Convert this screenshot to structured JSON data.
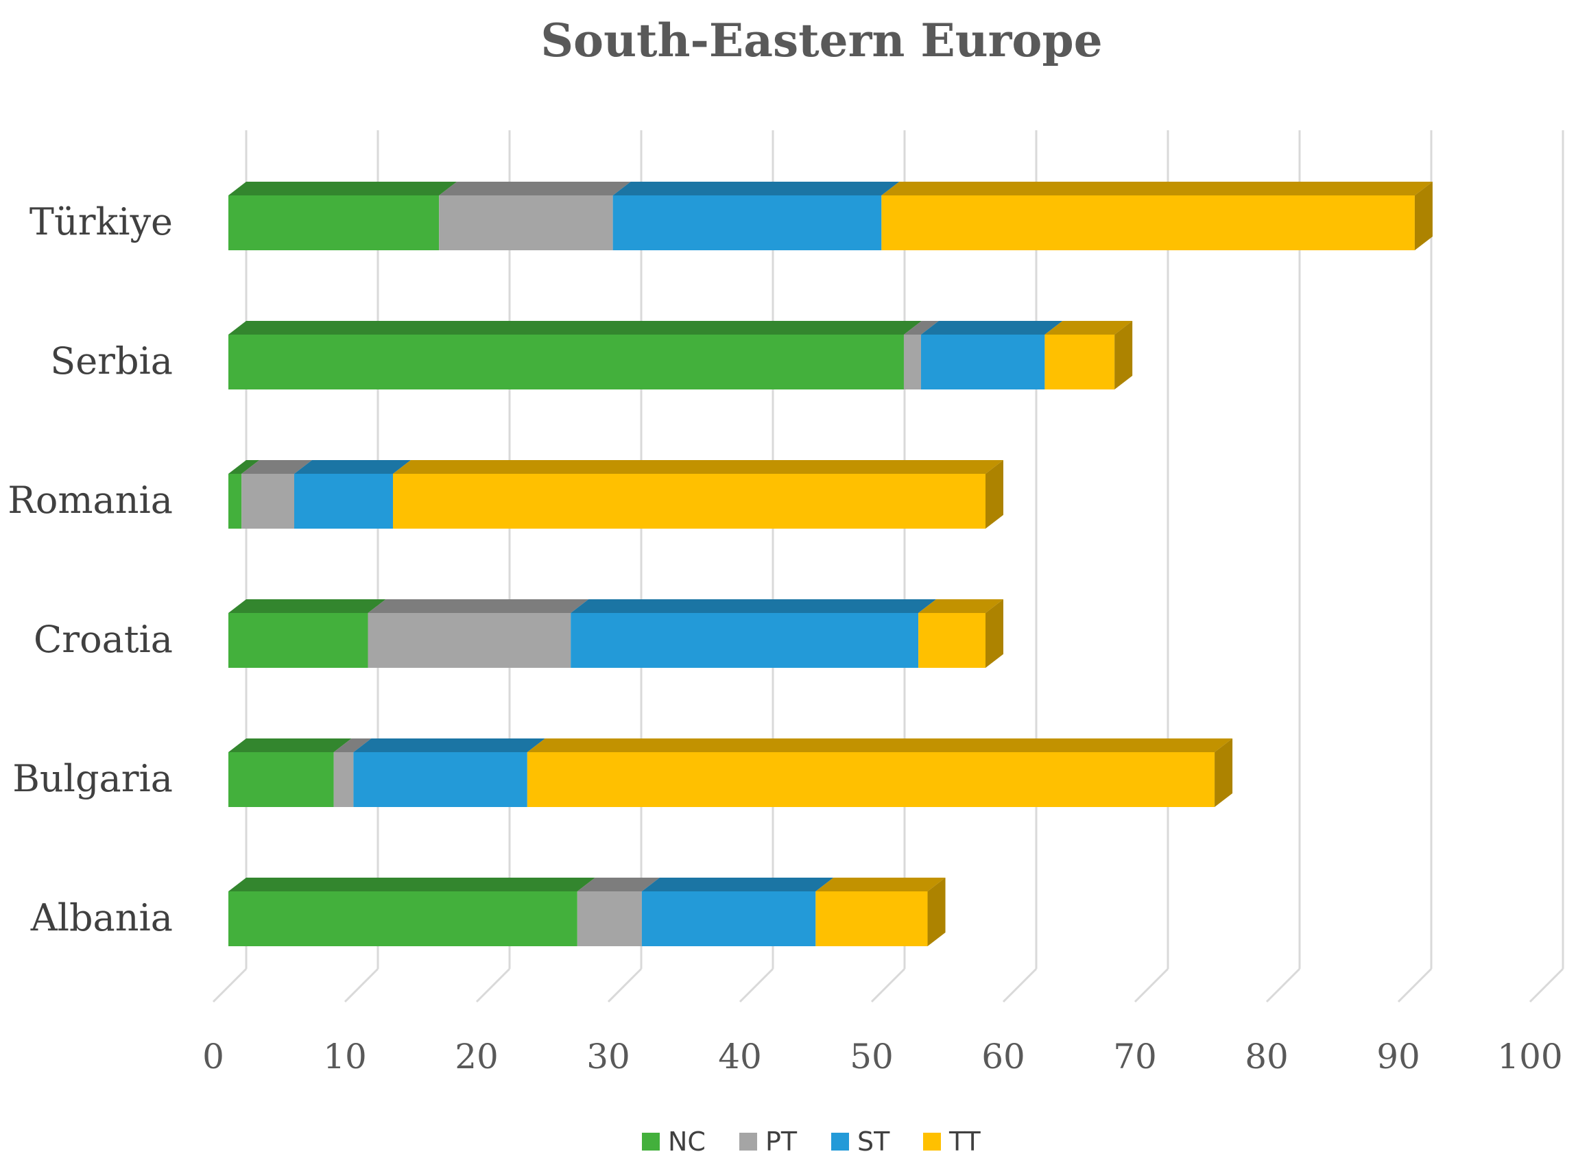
{
  "chart_data": {
    "type": "bar",
    "orientation": "horizontal",
    "stacked": true,
    "title": "South-Eastern Europe",
    "categories": [
      "Albania",
      "Bulgaria",
      "Croatia",
      "Romania",
      "Serbia",
      "Türkiye"
    ],
    "series": [
      {
        "name": "NC",
        "color": "#43b03c",
        "values": [
          26.5,
          8,
          10.6,
          1,
          51.3,
          16
        ]
      },
      {
        "name": "PT",
        "color": "#a5a5a5",
        "values": [
          4.9,
          1.5,
          15.4,
          4,
          1.3,
          13.2
        ]
      },
      {
        "name": "ST",
        "color": "#239ad8",
        "values": [
          13.2,
          13.2,
          26.4,
          7.5,
          9.4,
          20.4
        ]
      },
      {
        "name": "TT",
        "color": "#ffc000",
        "values": [
          8.5,
          52.2,
          5.1,
          45,
          5.3,
          40.5
        ]
      }
    ],
    "xlim": [
      0,
      100
    ],
    "xticks": [
      "0",
      "10",
      "20",
      "30",
      "40",
      "50",
      "60",
      "70",
      "80",
      "90",
      "100"
    ],
    "grid": true,
    "legend_position": "bottom",
    "style": "3d"
  }
}
